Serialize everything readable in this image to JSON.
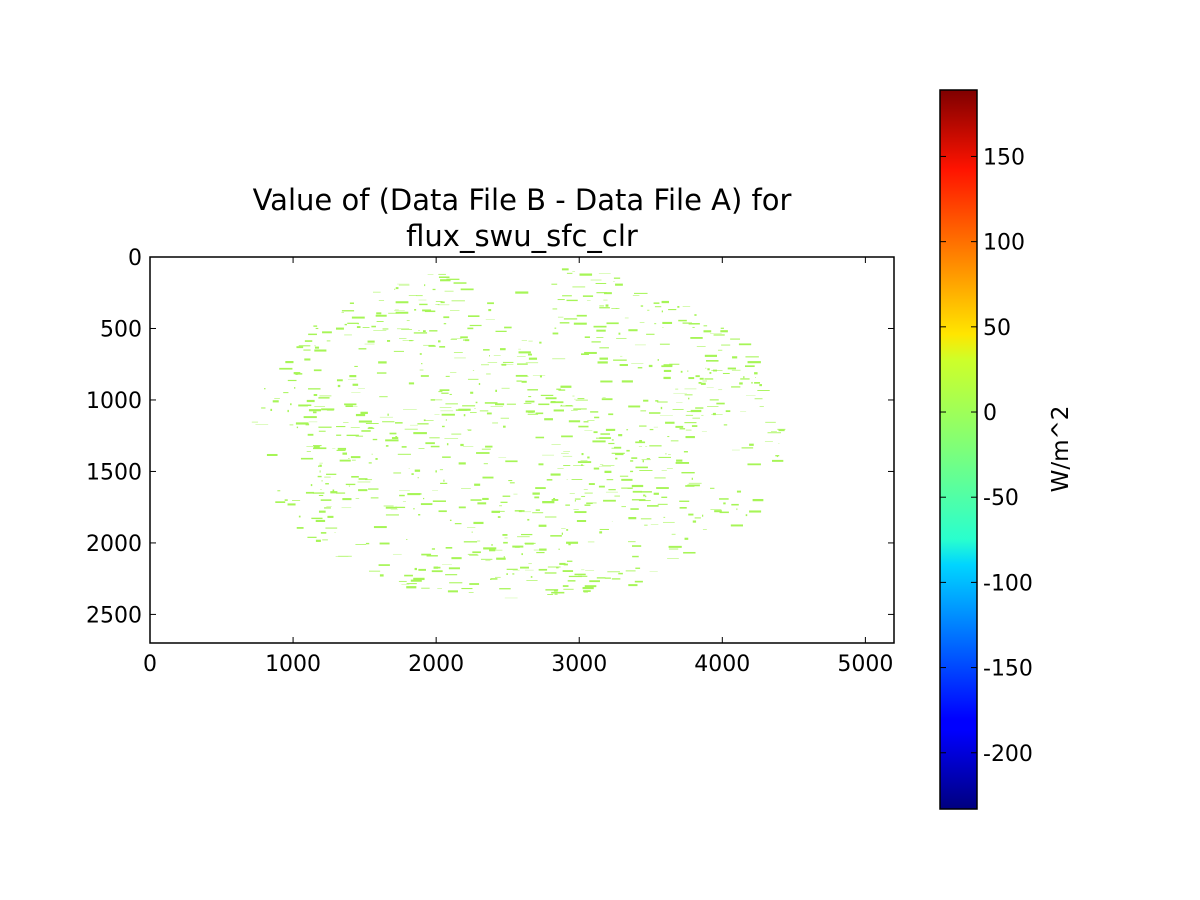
{
  "chart_data": {
    "type": "heatmap",
    "title": "Value of (Data File B - Data File A) for\nflux_swu_sfc_clr",
    "title_lines": [
      "Value of (Data File B - Data File A) for",
      "flux_swu_sfc_clr"
    ],
    "xlabel": "",
    "ylabel": "",
    "xlim": [
      0,
      5200
    ],
    "ylim": [
      2700,
      0
    ],
    "y_inverted": true,
    "x_ticks": [
      0,
      1000,
      2000,
      3000,
      4000,
      5000
    ],
    "y_ticks": [
      0,
      500,
      1000,
      1500,
      2000,
      2500
    ],
    "x_tick_labels": [
      "0",
      "1000",
      "2000",
      "3000",
      "4000",
      "5000"
    ],
    "y_tick_labels": [
      "0",
      "500",
      "1000",
      "1500",
      "2000",
      "2500"
    ],
    "colormap": "jet",
    "colorbar": {
      "label": "W/m^2",
      "range": [
        -233,
        189
      ],
      "ticks": [
        150,
        100,
        50,
        0,
        -50,
        -100,
        -150,
        -200
      ],
      "tick_labels": [
        "150",
        "100",
        "50",
        "0",
        "-50",
        "-100",
        "-150",
        "-200"
      ]
    },
    "data_description": "Nearly all valid pixels have a difference value near 0 W/m^2 (rendered in light green), distributed as scattered clear-sky patches over a full-disk satellite view; non-valid pixels are blank.",
    "dominant_value": 0,
    "disk": {
      "center_x": 2550,
      "center_y": 1230,
      "radius_x": 1850,
      "radius_y": 1180
    },
    "grid": false,
    "legend": "none"
  },
  "colors": {
    "data_green": "#a6f556",
    "axis": "#000000",
    "background": "#ffffff"
  }
}
